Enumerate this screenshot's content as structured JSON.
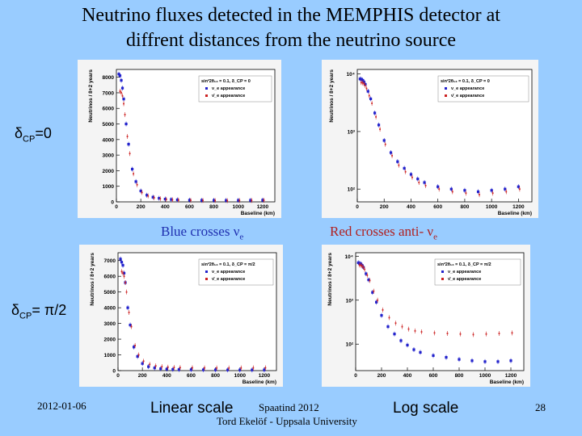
{
  "slide": {
    "title_line1": "Neutrino fluxes detected in the MEMPHIS detector at",
    "title_line2": "diffrent distances from the neutrino source",
    "delta_top": {
      "prefix": "δ",
      "sub": "CP",
      "suffix": "=0"
    },
    "delta_bottom": {
      "prefix": "δ",
      "sub": "CP",
      "suffix": "= π/2"
    },
    "caption_blue": {
      "text": "Blue crosses ν",
      "sub": "e"
    },
    "caption_red": {
      "text": "Red crosses anti- ν",
      "sub": "e"
    },
    "linear_label": "Linear scale",
    "log_label": "Log scale",
    "date": "2012-01-06",
    "event": "Spaatind 2012",
    "author": "Tord Ekelöf - Uppsala University",
    "page_number": "28",
    "colors": {
      "background": "#99ccff",
      "blue_series": "#2222cc",
      "red_series": "#cc2222"
    }
  },
  "chart_data": [
    {
      "type": "scatter",
      "id": "linear-delta0",
      "xlabel": "Baseline (km)",
      "ylabel": "Neutrinos / 8+2 years",
      "ylim": [
        0,
        8500
      ],
      "xlim": [
        0,
        1300
      ],
      "xticks": [
        0,
        200,
        400,
        600,
        800,
        1000,
        1200
      ],
      "yticks": [
        0,
        1000,
        2000,
        3000,
        4000,
        5000,
        6000,
        7000,
        8000
      ],
      "ytick_labels": [
        "0",
        "1000",
        "2000",
        "3000",
        "4000",
        "5000",
        "6000",
        "7000",
        "8000"
      ],
      "legend": {
        "title": "sin²2θ₁₃ = 0.1, δ_CP = 0",
        "entries": [
          "ν_e appearance",
          "ν̄_e appearance"
        ],
        "position": "top-right"
      },
      "series": [
        {
          "name": "ν_e appearance",
          "color": "#2222cc",
          "x": [
            20,
            30,
            40,
            50,
            60,
            80,
            100,
            130,
            160,
            200,
            250,
            300,
            350,
            400,
            450,
            500,
            600,
            700,
            800,
            900,
            1000,
            1100,
            1200
          ],
          "y": [
            8200,
            8100,
            7800,
            7300,
            6600,
            5000,
            3700,
            2100,
            1300,
            700,
            430,
            300,
            230,
            180,
            150,
            130,
            110,
            100,
            95,
            90,
            95,
            100,
            110
          ]
        },
        {
          "name": "ν̄_e appearance",
          "color": "#cc2222",
          "x": [
            20,
            30,
            40,
            50,
            60,
            80,
            100,
            130,
            160,
            200,
            250,
            300,
            350,
            400,
            450,
            500,
            600,
            700,
            800,
            900,
            1000,
            1100,
            1200
          ],
          "y": [
            7100,
            7000,
            6800,
            6300,
            5600,
            4200,
            3100,
            1800,
            1100,
            600,
            380,
            260,
            200,
            160,
            130,
            115,
            100,
            90,
            85,
            80,
            85,
            90,
            100
          ]
        }
      ]
    },
    {
      "type": "scatter",
      "id": "log-delta0",
      "scale": "log",
      "xlabel": "Baseline (km)",
      "ylabel": "Neutrinos / 8+2 years",
      "ylim": [
        60,
        12000
      ],
      "xlim": [
        0,
        1300
      ],
      "xticks": [
        0,
        200,
        400,
        600,
        800,
        1000,
        1200
      ],
      "yticks": [
        100,
        1000,
        10000
      ],
      "ytick_labels": [
        "10²",
        "10³",
        "10⁴"
      ],
      "legend": {
        "title": "sin²2θ₁₃ = 0.1, δ_CP = 0",
        "entries": [
          "ν_e appearance",
          "ν̄_e appearance"
        ],
        "position": "top-right"
      },
      "series": [
        {
          "name": "ν_e appearance",
          "color": "#2222cc",
          "x": [
            20,
            30,
            40,
            50,
            60,
            80,
            100,
            130,
            160,
            200,
            250,
            300,
            350,
            400,
            450,
            500,
            600,
            700,
            800,
            900,
            1000,
            1100,
            1200
          ],
          "y": [
            8200,
            8100,
            7800,
            7300,
            6600,
            5000,
            3700,
            2100,
            1300,
            700,
            430,
            300,
            230,
            180,
            150,
            130,
            110,
            100,
            95,
            90,
            95,
            100,
            110
          ]
        },
        {
          "name": "ν̄_e appearance",
          "color": "#cc2222",
          "x": [
            20,
            30,
            40,
            50,
            60,
            80,
            100,
            130,
            160,
            200,
            250,
            300,
            350,
            400,
            450,
            500,
            600,
            700,
            800,
            900,
            1000,
            1100,
            1200
          ],
          "y": [
            7100,
            7000,
            6800,
            6300,
            5600,
            4200,
            3100,
            1800,
            1100,
            600,
            380,
            260,
            200,
            160,
            130,
            115,
            100,
            90,
            85,
            80,
            85,
            90,
            100
          ]
        }
      ]
    },
    {
      "type": "scatter",
      "id": "linear-deltapi2",
      "xlabel": "Baseline (km)",
      "ylabel": "Neutrinos / 8+2 years",
      "ylim": [
        0,
        7500
      ],
      "xlim": [
        0,
        1300
      ],
      "xticks": [
        0,
        200,
        400,
        600,
        800,
        1000,
        1200
      ],
      "yticks": [
        0,
        1000,
        2000,
        3000,
        4000,
        5000,
        6000,
        7000
      ],
      "ytick_labels": [
        "0",
        "1000",
        "2000",
        "3000",
        "4000",
        "5000",
        "6000",
        "7000"
      ],
      "legend": {
        "title": "sin²2θ₁₃ = 0.1, δ_CP = π/2",
        "entries": [
          "ν_e appearance",
          "ν̄_e appearance"
        ],
        "position": "top-right"
      },
      "series": [
        {
          "name": "ν_e appearance",
          "color": "#2222cc",
          "x": [
            20,
            30,
            40,
            50,
            60,
            80,
            100,
            130,
            160,
            200,
            250,
            300,
            350,
            400,
            450,
            500,
            600,
            700,
            800,
            900,
            1000,
            1100,
            1200
          ],
          "y": [
            7100,
            6900,
            6700,
            6200,
            5600,
            4000,
            2900,
            1500,
            900,
            450,
            250,
            170,
            120,
            95,
            75,
            65,
            55,
            50,
            45,
            42,
            40,
            40,
            42
          ]
        },
        {
          "name": "ν̄_e appearance",
          "color": "#cc2222",
          "x": [
            20,
            30,
            40,
            50,
            60,
            80,
            100,
            130,
            160,
            200,
            250,
            300,
            350,
            400,
            450,
            500,
            600,
            700,
            800,
            900,
            1000,
            1100,
            1200
          ],
          "y": [
            6300,
            6200,
            6000,
            5600,
            5000,
            3700,
            2800,
            1600,
            1000,
            600,
            400,
            300,
            250,
            220,
            200,
            190,
            180,
            175,
            170,
            165,
            170,
            175,
            180
          ]
        }
      ]
    },
    {
      "type": "scatter",
      "id": "log-deltapi2",
      "scale": "log",
      "xlabel": "Baseline (km)",
      "ylabel": "Neutrinos / 8+2 years",
      "ylim": [
        25,
        12000
      ],
      "xlim": [
        0,
        1300
      ],
      "xticks": [
        0,
        200,
        400,
        600,
        800,
        1000,
        1200
      ],
      "yticks": [
        100,
        1000,
        10000
      ],
      "ytick_labels": [
        "10²",
        "10³",
        "10⁴"
      ],
      "legend": {
        "title": "sin²2θ₁₃ = 0.1, δ_CP = π/2",
        "entries": [
          "ν_e appearance",
          "ν̄_e appearance"
        ],
        "position": "top-right"
      },
      "series": [
        {
          "name": "ν_e appearance",
          "color": "#2222cc",
          "x": [
            20,
            30,
            40,
            50,
            60,
            80,
            100,
            130,
            160,
            200,
            250,
            300,
            350,
            400,
            450,
            500,
            600,
            700,
            800,
            900,
            1000,
            1100,
            1200
          ],
          "y": [
            7100,
            6900,
            6700,
            6200,
            5600,
            4000,
            2900,
            1500,
            900,
            450,
            250,
            170,
            120,
            95,
            75,
            65,
            55,
            50,
            45,
            42,
            40,
            40,
            42
          ]
        },
        {
          "name": "ν̄_e appearance",
          "color": "#cc2222",
          "x": [
            20,
            30,
            40,
            50,
            60,
            80,
            100,
            130,
            160,
            200,
            250,
            300,
            350,
            400,
            450,
            500,
            600,
            700,
            800,
            900,
            1000,
            1100,
            1200
          ],
          "y": [
            6300,
            6200,
            6000,
            5600,
            5000,
            3700,
            2800,
            1600,
            1000,
            600,
            400,
            300,
            250,
            220,
            200,
            190,
            180,
            175,
            170,
            165,
            170,
            175,
            180
          ]
        }
      ]
    }
  ]
}
